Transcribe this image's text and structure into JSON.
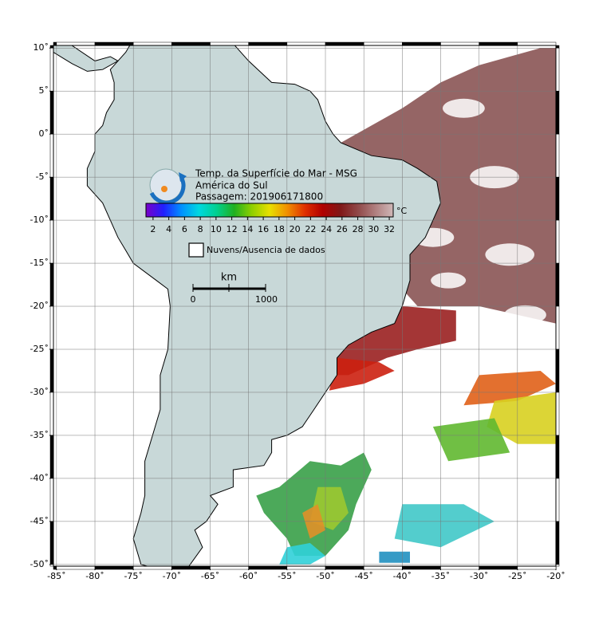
{
  "map": {
    "xlim": [
      -85.4,
      -20
    ],
    "ylim": [
      -50.2,
      10.3
    ],
    "xticks": [
      {
        "value": -85,
        "label": "-85˚"
      },
      {
        "value": -80,
        "label": "-80˚"
      },
      {
        "value": -75,
        "label": "-75˚"
      },
      {
        "value": -70,
        "label": "-70˚"
      },
      {
        "value": -65,
        "label": "-65˚"
      },
      {
        "value": -60,
        "label": "-60˚"
      },
      {
        "value": -55,
        "label": "-55˚"
      },
      {
        "value": -50,
        "label": "-50˚"
      },
      {
        "value": -45,
        "label": "-45˚"
      },
      {
        "value": -40,
        "label": "-40˚"
      },
      {
        "value": -35,
        "label": "-35˚"
      },
      {
        "value": -30,
        "label": "-30˚"
      },
      {
        "value": -25,
        "label": "-25˚"
      },
      {
        "value": -20,
        "label": "-20˚"
      }
    ],
    "yticks": [
      {
        "value": 10,
        "label": "10˚"
      },
      {
        "value": 5,
        "label": "5˚"
      },
      {
        "value": 0,
        "label": "0˚"
      },
      {
        "value": -5,
        "label": "-5˚"
      },
      {
        "value": -10,
        "label": "-10˚"
      },
      {
        "value": -15,
        "label": "-15˚"
      },
      {
        "value": -20,
        "label": "-20˚"
      },
      {
        "value": -25,
        "label": "-25˚"
      },
      {
        "value": -30,
        "label": "-30˚"
      },
      {
        "value": -35,
        "label": "-35˚"
      },
      {
        "value": -40,
        "label": "-40˚"
      },
      {
        "value": -45,
        "label": "-45˚"
      },
      {
        "value": -50,
        "label": "-50˚"
      }
    ],
    "grid": true
  },
  "legend": {
    "title": [
      "Temp. da Superfície do Mar - MSG",
      "América do Sul",
      "Passagem: 201906171800"
    ],
    "colorbar": {
      "lim": [
        1.1,
        32.5
      ],
      "ticks": [
        2,
        4,
        6,
        8,
        10,
        12,
        14,
        16,
        18,
        20,
        22,
        24,
        26,
        28,
        30,
        32
      ],
      "unit": "°C",
      "colors": [
        "#7a00c8",
        "#2020ff",
        "#0090ff",
        "#00d8e0",
        "#00d090",
        "#20b020",
        "#90d000",
        "#e8e000",
        "#f09000",
        "#e03000",
        "#b00000",
        "#801818",
        "#904848",
        "#b08080",
        "#d0b8b8"
      ]
    },
    "clouds": "Nuvens/Ausencia de dados",
    "scale": {
      "unit": "km",
      "labels": [
        "0",
        "1000"
      ]
    }
  }
}
